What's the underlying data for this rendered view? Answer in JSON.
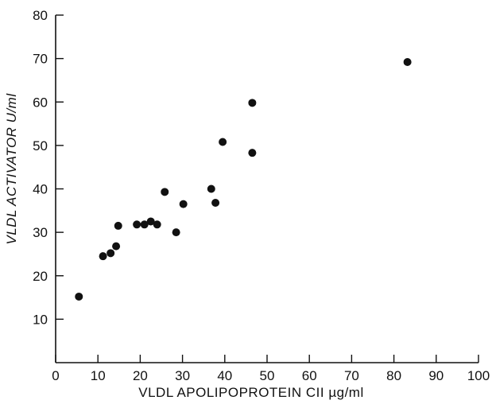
{
  "chart_data": {
    "type": "scatter",
    "title": "",
    "xlabel": "VLDL APOLIPOPROTEIN CII µg/ml",
    "ylabel": "VLDL ACTIVATOR U/ml",
    "xlim": [
      0,
      100
    ],
    "ylim": [
      0,
      80
    ],
    "xticks": [
      0,
      10,
      20,
      30,
      40,
      50,
      60,
      70,
      80,
      90,
      100
    ],
    "yticks": [
      10,
      20,
      30,
      40,
      50,
      60,
      70,
      80
    ],
    "grid": false,
    "points": [
      {
        "x": 5.5,
        "y": 15.2
      },
      {
        "x": 11.2,
        "y": 24.5
      },
      {
        "x": 13.0,
        "y": 25.2
      },
      {
        "x": 14.3,
        "y": 26.8
      },
      {
        "x": 14.8,
        "y": 31.5
      },
      {
        "x": 19.2,
        "y": 31.8
      },
      {
        "x": 21.0,
        "y": 31.8
      },
      {
        "x": 22.5,
        "y": 32.5
      },
      {
        "x": 24.0,
        "y": 31.8
      },
      {
        "x": 25.8,
        "y": 39.3
      },
      {
        "x": 28.5,
        "y": 30.0
      },
      {
        "x": 30.2,
        "y": 36.5
      },
      {
        "x": 36.8,
        "y": 40.0
      },
      {
        "x": 37.8,
        "y": 36.8
      },
      {
        "x": 39.5,
        "y": 50.8
      },
      {
        "x": 46.5,
        "y": 59.8
      },
      {
        "x": 46.5,
        "y": 48.3
      },
      {
        "x": 83.2,
        "y": 69.2
      }
    ]
  }
}
